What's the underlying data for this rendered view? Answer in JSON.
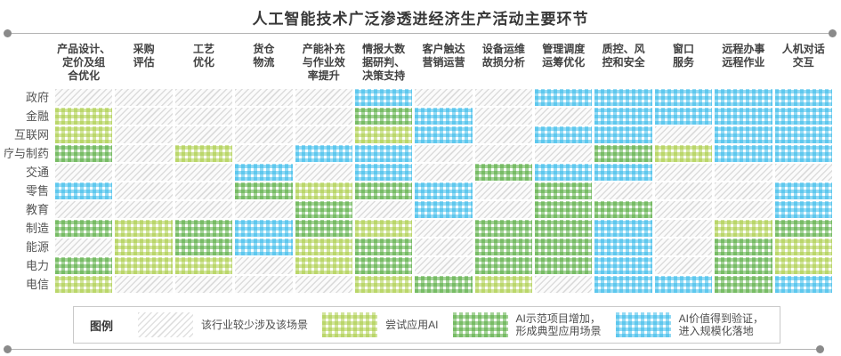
{
  "title": "人工智能技术广泛渗透进经济生产活动主要环节",
  "legend": {
    "label": "图例",
    "items": [
      {
        "level": 0,
        "text": "该行业较少涉及该场景"
      },
      {
        "level": 1,
        "text": "尝试应用AI"
      },
      {
        "level": 2,
        "text": "AI示范项目增加，\n形成典型应用场景"
      },
      {
        "level": 3,
        "text": "AI价值得到验证，\n进入规模化落地"
      }
    ]
  },
  "chart_data": {
    "type": "heatmap",
    "title": "人工智能技术广泛渗透进经济生产活动主要环节",
    "x_categories": [
      "产品设计、\n定价及组\n合优化",
      "采购\n评估",
      "工艺\n优化",
      "货仓\n物流",
      "产能补充\n与作业效\n率提升",
      "情报大数\n据研判、\n决策支持",
      "客户触达\n营销运营",
      "设备运维\n故损分析",
      "管理调度\n运筹优化",
      "质控、风\n控和安全",
      "窗口\n服务",
      "远程办事\n远程作业",
      "人机对话\n交互"
    ],
    "y_categories": [
      "政府",
      "金融",
      "互联网",
      "医疗与制药",
      "交通",
      "零售",
      "教育",
      "制造",
      "能源",
      "电力",
      "电信"
    ],
    "levels": {
      "0": "该行业较少涉及该场景",
      "1": "尝试应用AI",
      "2": "AI示范项目增加，形成典型应用场景",
      "3": "AI价值得到验证，进入规模化落地"
    },
    "colors": {
      "0": "#dcdcdc",
      "1": "#a4c939",
      "2": "#4aa632",
      "3": "#29b5e8"
    },
    "values": [
      [
        0,
        0,
        0,
        0,
        0,
        3,
        0,
        0,
        3,
        3,
        3,
        3,
        3
      ],
      [
        1,
        0,
        0,
        0,
        0,
        2,
        3,
        0,
        0,
        3,
        3,
        3,
        3
      ],
      [
        1,
        0,
        0,
        0,
        0,
        1,
        3,
        0,
        3,
        3,
        0,
        3,
        3
      ],
      [
        2,
        0,
        1,
        0,
        3,
        3,
        0,
        0,
        0,
        2,
        1,
        3,
        3
      ],
      [
        0,
        0,
        0,
        3,
        0,
        3,
        0,
        2,
        3,
        3,
        0,
        0,
        0
      ],
      [
        3,
        0,
        0,
        2,
        1,
        2,
        3,
        0,
        2,
        0,
        0,
        0,
        3
      ],
      [
        0,
        0,
        0,
        0,
        2,
        0,
        3,
        0,
        2,
        2,
        0,
        0,
        3
      ],
      [
        2,
        1,
        2,
        3,
        2,
        1,
        0,
        2,
        2,
        3,
        0,
        1,
        2
      ],
      [
        0,
        1,
        2,
        3,
        1,
        2,
        0,
        2,
        2,
        3,
        0,
        2,
        1
      ],
      [
        2,
        1,
        1,
        0,
        1,
        2,
        0,
        2,
        2,
        3,
        0,
        2,
        1
      ],
      [
        1,
        0,
        0,
        0,
        0,
        1,
        2,
        1,
        0,
        3,
        3,
        2,
        3
      ]
    ]
  }
}
